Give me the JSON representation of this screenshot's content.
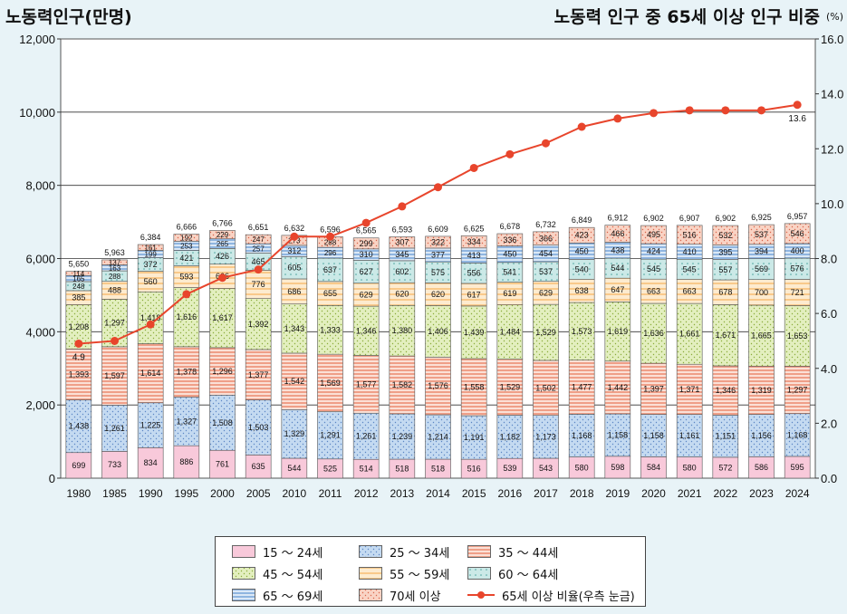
{
  "title_left": "노동력인구(만명)",
  "title_right": "노동력 인구 중 65세 이상 인구 비중",
  "title_right_unit": "(%)",
  "colors": {
    "line": "#e8452c",
    "s15_24": "#f8c9da",
    "s25_34": "#bad3ef",
    "s35_44": "#f3b8a6",
    "s45_54": "#dbeab2",
    "s55_59": "#fde1b8",
    "s60_64": "#bfe4e2",
    "s65_69": "#c0d6ef",
    "s70": "#f7c3b0"
  },
  "chart_data": {
    "type": "bar",
    "stacked": true,
    "categories": [
      "1980",
      "1985",
      "1990",
      "1995",
      "2000",
      "2005",
      "2010",
      "2011",
      "2012",
      "2013",
      "2014",
      "2015",
      "2016",
      "2017",
      "2018",
      "2019",
      "2020",
      "2021",
      "2022",
      "2023",
      "2024"
    ],
    "series": [
      {
        "name": "15 ～ 24세",
        "key": "s15_24",
        "values": [
          699,
          733,
          834,
          886,
          761,
          635,
          544,
          525,
          514,
          518,
          518,
          516,
          539,
          543,
          580,
          598,
          584,
          580,
          572,
          586,
          595
        ]
      },
      {
        "name": "25 ～ 34세",
        "key": "s25_34",
        "values": [
          1438,
          1261,
          1225,
          1327,
          1508,
          1503,
          1329,
          1291,
          1261,
          1239,
          1214,
          1191,
          1182,
          1173,
          1168,
          1158,
          1158,
          1161,
          1151,
          1156,
          1168
        ]
      },
      {
        "name": "35 ～ 44세",
        "key": "s35_44",
        "values": [
          1393,
          1597,
          1614,
          1378,
          1296,
          1377,
          1542,
          1569,
          1577,
          1582,
          1576,
          1558,
          1529,
          1502,
          1477,
          1442,
          1397,
          1371,
          1346,
          1319,
          1297
        ]
      },
      {
        "name": "45 ～ 54세",
        "key": "s45_54",
        "values": [
          1208,
          1297,
          1418,
          1616,
          1617,
          1392,
          1343,
          1333,
          1346,
          1380,
          1406,
          1439,
          1484,
          1529,
          1573,
          1619,
          1636,
          1661,
          1671,
          1665,
          1653
        ]
      },
      {
        "name": "55 ～ 59세",
        "key": "s55_59",
        "values": [
          385,
          488,
          560,
          593,
          666,
          776,
          686,
          655,
          629,
          620,
          620,
          617,
          619,
          629,
          638,
          647,
          663,
          663,
          678,
          700,
          721
        ]
      },
      {
        "name": "60 ～ 64세",
        "key": "s60_64",
        "values": [
          248,
          288,
          372,
          421,
          426,
          465,
          605,
          637,
          627,
          602,
          575,
          556,
          541,
          537,
          540,
          544,
          545,
          545,
          557,
          569,
          576
        ]
      },
      {
        "name": "65 ～ 69세",
        "key": "s65_69",
        "values": [
          165,
          163,
          199,
          253,
          265,
          257,
          312,
          296,
          310,
          345,
          377,
          413,
          450,
          454,
          450,
          438,
          424,
          410,
          395,
          394,
          400
        ]
      },
      {
        "name": "70세 이상",
        "key": "s70",
        "values": [
          114,
          137,
          161,
          192,
          229,
          247,
          273,
          288,
          299,
          307,
          322,
          334,
          336,
          366,
          423,
          466,
          495,
          516,
          532,
          537,
          546
        ]
      }
    ],
    "totals": [
      5650,
      5963,
      6384,
      6666,
      6766,
      6651,
      6632,
      6596,
      6565,
      6593,
      6609,
      6625,
      6678,
      6732,
      6849,
      6912,
      6902,
      6907,
      6902,
      6925,
      6957
    ],
    "line": {
      "name": "65세 이상 비율(우측 눈금)",
      "values": [
        4.9,
        5.0,
        5.6,
        6.7,
        7.3,
        7.6,
        8.8,
        8.8,
        9.3,
        9.9,
        10.6,
        11.3,
        11.8,
        12.2,
        12.8,
        13.1,
        13.3,
        13.4,
        13.4,
        13.4,
        13.6
      ],
      "labels": {
        "0": "4.9",
        "20": "13.6"
      }
    },
    "y_left": {
      "min": 0,
      "max": 12000,
      "ticks": [
        "0",
        "2,000",
        "4,000",
        "6,000",
        "8,000",
        "10,000",
        "12,000"
      ]
    },
    "y_right": {
      "min": 0,
      "max": 16,
      "ticks": [
        "0.0",
        "2.0",
        "4.0",
        "6.0",
        "8.0",
        "10.0",
        "12.0",
        "14.0",
        "16.0"
      ]
    }
  }
}
